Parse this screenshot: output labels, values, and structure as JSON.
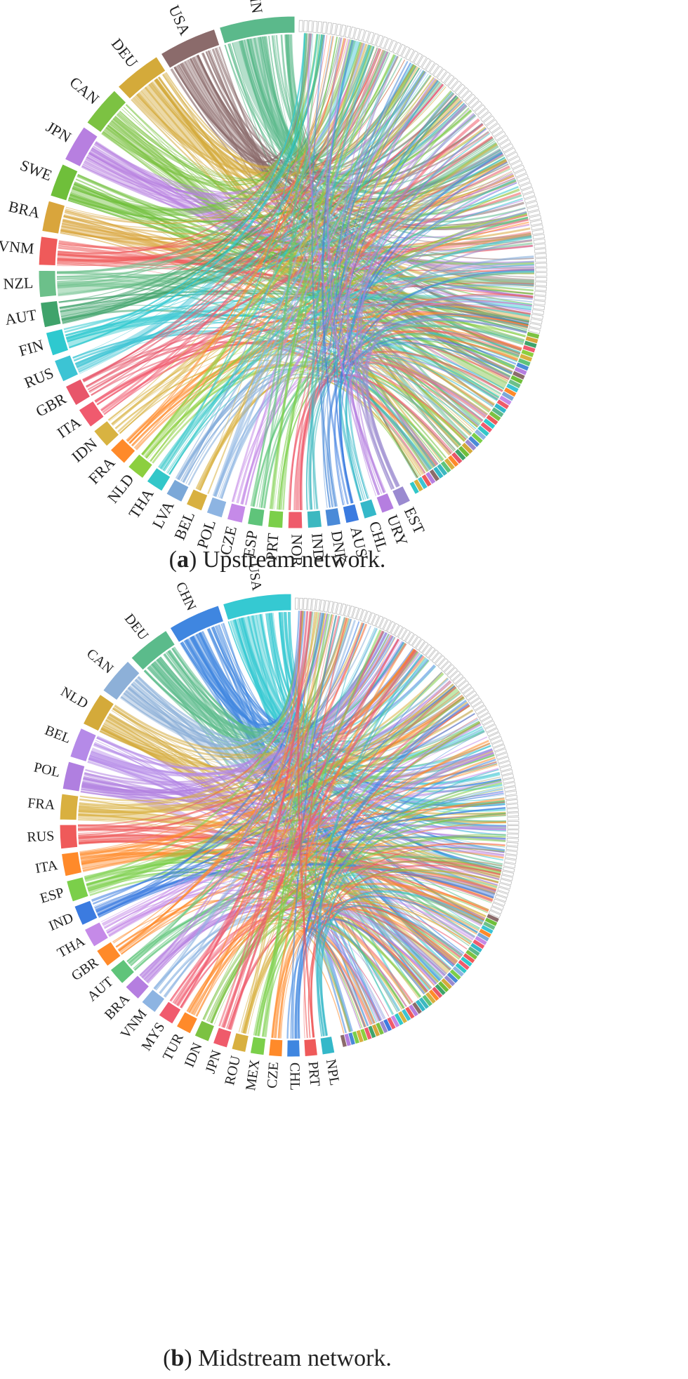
{
  "diagrams": [
    {
      "labels": [
        "CHN",
        "USA",
        "DEU",
        "CAN",
        "JPN",
        "SWE",
        "BRA",
        "VNM",
        "NZL",
        "AUT",
        "FIN",
        "RUS",
        "GBR",
        "ITA",
        "IDN",
        "FRA",
        "NLD",
        "THA",
        "LVA",
        "BEL",
        "POL",
        "CZE",
        "ESP",
        "PRT",
        "NOR",
        "IND",
        "DNK",
        "AUS",
        "CHL",
        "URY",
        "EST"
      ],
      "caption": {
        "letter": "a",
        "text": "Upstream network."
      }
    },
    {
      "labels": [
        "USA",
        "CHN",
        "DEU",
        "CAN",
        "NLD",
        "BEL",
        "POL",
        "FRA",
        "RUS",
        "ITA",
        "ESP",
        "IND",
        "THA",
        "GBR",
        "AUT",
        "BRA",
        "VNM",
        "MYS",
        "TUR",
        "IDN",
        "JPN",
        "ROU",
        "MEX",
        "CZE",
        "CHL",
        "PRT",
        "NPL"
      ],
      "caption": {
        "letter": "b",
        "text": "Midstream network."
      }
    }
  ]
}
